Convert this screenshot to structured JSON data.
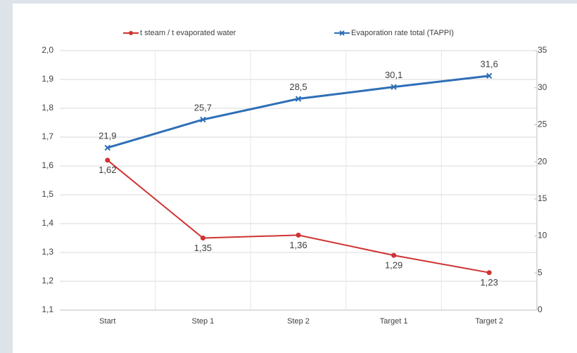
{
  "chart_data": {
    "type": "line",
    "categories": [
      "Start",
      "Step 1",
      "Step 2",
      "Target 1",
      "Target 2"
    ],
    "series": [
      {
        "name": "t steam / t evaporated water",
        "color": "#d03232",
        "axis": "y",
        "values": [
          1.62,
          1.35,
          1.36,
          1.29,
          1.23
        ],
        "value_labels": [
          "1,62",
          "1,35",
          "1,36",
          "1,29",
          "1,23"
        ]
      },
      {
        "name": "Evaporation rate total (TAPPI)",
        "color": "#2e6fb7",
        "axis": "y2",
        "values": [
          21.9,
          25.7,
          28.5,
          30.1,
          31.6
        ],
        "value_labels": [
          "21,9",
          "25,7",
          "28,5",
          "30,1",
          "31,6"
        ]
      }
    ],
    "ylim": [
      1.1,
      2.0
    ],
    "yticks": [
      {
        "value": 1.1,
        "label": "1,1"
      },
      {
        "value": 1.2,
        "label": "1,2"
      },
      {
        "value": 1.3,
        "label": "1,3"
      },
      {
        "value": 1.4,
        "label": "1,4"
      },
      {
        "value": 1.5,
        "label": "1,5"
      },
      {
        "value": 1.6,
        "label": "1,6"
      },
      {
        "value": 1.7,
        "label": "1,7"
      },
      {
        "value": 1.8,
        "label": "1,8"
      },
      {
        "value": 1.9,
        "label": "1,9"
      },
      {
        "value": 2,
        "label": "2,0"
      }
    ],
    "y2lim": [
      0,
      35
    ],
    "y2ticks": [
      0,
      5,
      10,
      15,
      20,
      25,
      30,
      35
    ],
    "grid": true,
    "legend": "top"
  }
}
